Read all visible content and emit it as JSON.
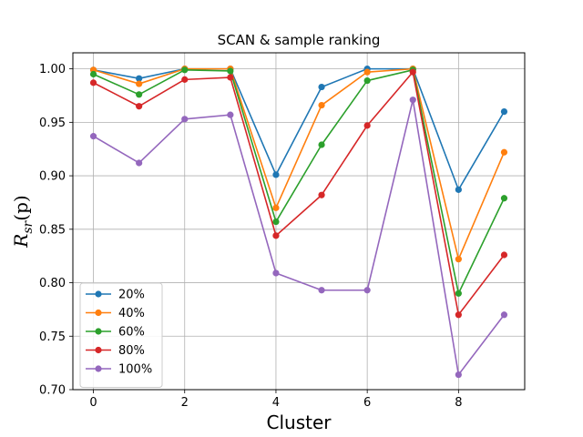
{
  "chart_data": {
    "type": "line",
    "title": "SCAN & sample ranking",
    "xlabel": "Cluster",
    "ylabel_main": "R",
    "ylabel_sub": "sr",
    "ylabel_arg": "(p)",
    "xlim": [
      -0.45,
      9.45
    ],
    "ylim": [
      0.7,
      1.015
    ],
    "xticks": [
      0,
      2,
      4,
      6,
      8
    ],
    "xtick_labels": [
      "0",
      "2",
      "4",
      "6",
      "8"
    ],
    "yticks": [
      0.7,
      0.75,
      0.8,
      0.85,
      0.9,
      0.95,
      1.0
    ],
    "ytick_labels": [
      "0.70",
      "0.75",
      "0.80",
      "0.85",
      "0.90",
      "0.95",
      "1.00"
    ],
    "grid": true,
    "legend_position": "lower-left",
    "x": [
      0,
      1,
      2,
      3,
      4,
      5,
      6,
      7,
      8,
      9
    ],
    "series": [
      {
        "name": "20%",
        "color": "#1f77b4",
        "values": [
          0.999,
          0.991,
          1.0,
          1.0,
          0.901,
          0.983,
          1.0,
          1.0,
          0.887,
          0.96
        ]
      },
      {
        "name": "40%",
        "color": "#ff7f0e",
        "values": [
          0.999,
          0.986,
          1.0,
          1.0,
          0.87,
          0.966,
          0.997,
          1.0,
          0.822,
          0.922
        ]
      },
      {
        "name": "60%",
        "color": "#2ca02c",
        "values": [
          0.995,
          0.976,
          0.999,
          0.998,
          0.857,
          0.929,
          0.989,
          0.999,
          0.79,
          0.879
        ]
      },
      {
        "name": "80%",
        "color": "#d62728",
        "values": [
          0.987,
          0.965,
          0.99,
          0.992,
          0.844,
          0.882,
          0.947,
          0.997,
          0.77,
          0.826
        ]
      },
      {
        "name": "100%",
        "color": "#9467bd",
        "values": [
          0.937,
          0.912,
          0.953,
          0.957,
          0.809,
          0.793,
          0.793,
          0.971,
          0.714,
          0.77
        ]
      }
    ]
  }
}
